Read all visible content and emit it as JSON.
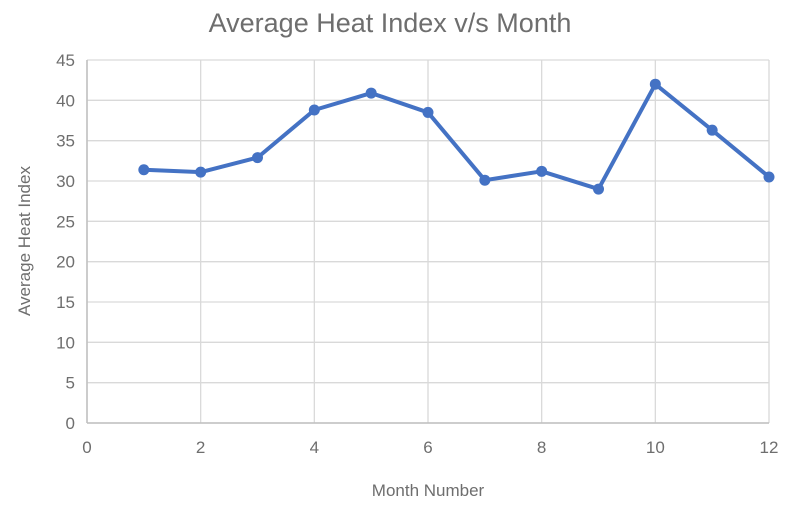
{
  "chart_data": {
    "type": "line",
    "title": "Average Heat Index v/s Month",
    "xlabel": "Month Number",
    "ylabel": "Average Heat Index",
    "x": [
      1,
      2,
      3,
      4,
      5,
      6,
      7,
      8,
      9,
      10,
      11,
      12
    ],
    "values": [
      31.4,
      31.1,
      32.9,
      38.8,
      40.9,
      38.5,
      30.1,
      31.2,
      29.0,
      42.0,
      36.3,
      30.5
    ],
    "xlim": [
      0,
      12
    ],
    "ylim": [
      0,
      45
    ],
    "xticks": [
      0,
      2,
      4,
      6,
      8,
      10,
      12
    ],
    "yticks": [
      0,
      5,
      10,
      15,
      20,
      25,
      30,
      35,
      40,
      45
    ],
    "grid": true,
    "legend_position": "none",
    "colors": {
      "line": "#4472C4",
      "marker": "#4472C4",
      "gridline": "#d9d9d9",
      "axis_line": "#bfbfbf",
      "text": "#6e6e6e"
    }
  }
}
